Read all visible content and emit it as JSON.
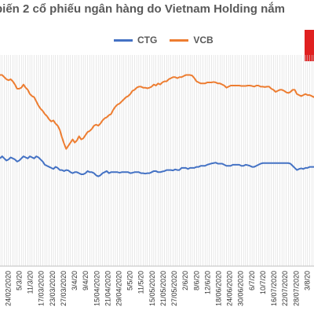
{
  "chart_data": {
    "type": "line",
    "title": "biến 2 cổ phiếu ngân hàng do Vietnam Holding nắm",
    "xlabel": "",
    "ylabel": "",
    "grid": "vertical lines per trading day",
    "legend_position": "top-center",
    "ylim": [
      0,
      100
    ],
    "x_tick_labels": [
      "24/02/2020",
      "5/3/20",
      "11/3/20",
      "17/03/2020",
      "23/03/2020",
      "27/03/2020",
      "3/4/20",
      "9/4/20",
      "15/04/2020",
      "21/04/2020",
      "29/04/2020",
      "5/5/20",
      "11/5/20",
      "15/05/2020",
      "21/05/2020",
      "27/05/2020",
      "2/6/20",
      "8/6/20",
      "12/6/20",
      "18/06/2020",
      "24/06/2020",
      "30/06/2020",
      "6/7/20",
      "10/7/20",
      "16/07/2020",
      "22/07/2020",
      "28/07/2020",
      "3/8/20"
    ],
    "series": [
      {
        "name": "CTG",
        "color": "#4472C4",
        "values": [
          51,
          52,
          51,
          50,
          50.5,
          51.5,
          51,
          50.5,
          49.5,
          50,
          51,
          52,
          51.5,
          51,
          52,
          51.5,
          51,
          52,
          51.5,
          50.5,
          49.5,
          48,
          47.5,
          47,
          46.5,
          46,
          47,
          46.5,
          45.5,
          45.5,
          45,
          45.5,
          45.3,
          44.5,
          44,
          44.5,
          44.5,
          44,
          43.5,
          43.5,
          44,
          45,
          44.5,
          44.5,
          44,
          43,
          42.5,
          43,
          44,
          44.5,
          45,
          44,
          44.5,
          44.5,
          44.5,
          44.5,
          44.2,
          44.5,
          44.5,
          44.5,
          44.5,
          44,
          44.2,
          44.5,
          44.5,
          44.5,
          44,
          44,
          43.8,
          44,
          44,
          44.5,
          45,
          45,
          44.5,
          44.5,
          44.8,
          45,
          45.5,
          45.5,
          45.5,
          45.3,
          45.8,
          45.5,
          45.5,
          46.5,
          46.5,
          46.5,
          46,
          46.5,
          46.5,
          46.5,
          47,
          47,
          47.5,
          47.5,
          47.5,
          48,
          48.3,
          48.6,
          48.8,
          49,
          48.5,
          48.5,
          48.5,
          48,
          47.5,
          47.5,
          47.5,
          48,
          48,
          48,
          48,
          47.5,
          47.5,
          48,
          47.8,
          47.5,
          47,
          47,
          47.5,
          48,
          48.5,
          48.8,
          48.8,
          48.8,
          48.8,
          48.8,
          48.8,
          48.8,
          48.8,
          48.8,
          48.8,
          48.8,
          48.8,
          48.8,
          48.5,
          47.5,
          46.5,
          45.5,
          46,
          46.3,
          46,
          46.5,
          46.5,
          47,
          47,
          47
        ]
      },
      {
        "name": "VCB",
        "color": "#ED7D31",
        "values": [
          90.5,
          90.5,
          89.5,
          88.5,
          88,
          88.5,
          87.5,
          86,
          84,
          84,
          84.5,
          86,
          84.5,
          83.5,
          81.5,
          80.5,
          80,
          78,
          76,
          74.5,
          73.5,
          72,
          71,
          69.5,
          68.5,
          69,
          67.5,
          66.5,
          64.5,
          61,
          58,
          55.5,
          57,
          58.5,
          60,
          58.5,
          59.5,
          61.5,
          60,
          60.5,
          62,
          63.5,
          64,
          65,
          66.5,
          67,
          66.5,
          67.5,
          69,
          70,
          70.5,
          71.5,
          72,
          74,
          75.5,
          76.5,
          77,
          78,
          79,
          80,
          80.5,
          81.5,
          83,
          83.5,
          84.5,
          85,
          85,
          84.5,
          84.5,
          84.2,
          84.5,
          85,
          86,
          85.5,
          86.5,
          86,
          87,
          87.5,
          87.5,
          88.5,
          89,
          89.5,
          89.5,
          89,
          89.5,
          89.5,
          90,
          90.5,
          90.5,
          90.5,
          90.2,
          89,
          87.5,
          87,
          86.5,
          86.5,
          86.5,
          87,
          87,
          87,
          87.2,
          87,
          86.5,
          86.5,
          86,
          85.5,
          84.5,
          85,
          85.5,
          85.5,
          85.5,
          85.5,
          85.5,
          85.3,
          85.3,
          85.3,
          85.5,
          85.5,
          85.3,
          85,
          85.5,
          85.5,
          85,
          85,
          84.8,
          85,
          85,
          84,
          83.5,
          82.5,
          83,
          83.5,
          83.5,
          83,
          82.3,
          82,
          82.5,
          83.5,
          83.5,
          81.5,
          81,
          80.5,
          81,
          81.5,
          81,
          81,
          80.5,
          80,
          81,
          83,
          84.5,
          85.5
        ]
      }
    ]
  },
  "badge_color": "#E02020"
}
